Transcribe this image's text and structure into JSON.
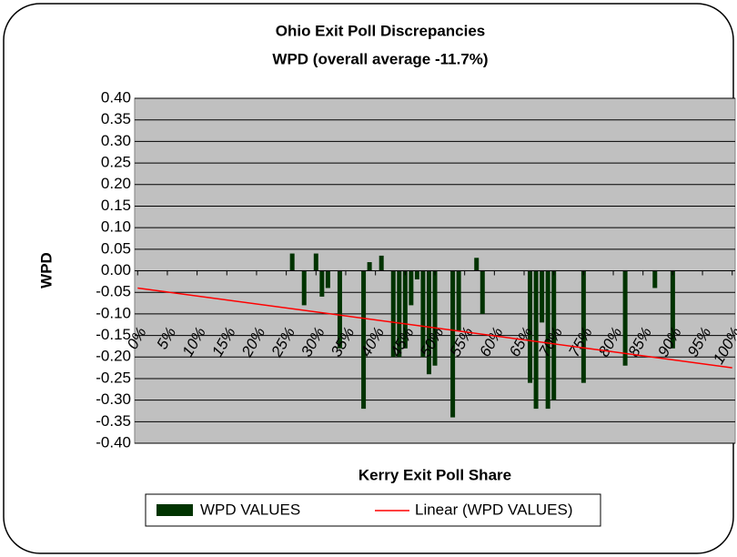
{
  "chart_data": {
    "type": "bar",
    "title": "Ohio Exit Poll Discrepancies",
    "subtitle": "WPD (overall average -11.7%)",
    "y_label": "WPD",
    "x_label": "Kerry Exit Poll Share",
    "x": [
      26,
      28,
      30,
      31,
      32,
      34,
      38,
      39,
      41,
      43,
      44,
      45,
      46,
      47,
      48,
      49,
      50,
      53,
      54,
      57,
      58,
      66,
      67,
      68,
      69,
      70,
      75,
      82,
      87,
      90
    ],
    "series": [
      {
        "name": "WPD VALUES",
        "color": "#003300",
        "values": [
          0.04,
          -0.08,
          0.04,
          -0.06,
          -0.04,
          -0.18,
          -0.32,
          0.02,
          0.035,
          -0.2,
          -0.2,
          -0.18,
          -0.08,
          -0.02,
          -0.2,
          -0.24,
          -0.22,
          -0.34,
          -0.14,
          0.03,
          -0.1,
          -0.26,
          -0.32,
          -0.12,
          -0.32,
          -0.3,
          -0.26,
          -0.22,
          -0.04,
          -0.18
        ]
      }
    ],
    "trendline": {
      "name": "Linear (WPD VALUES)",
      "color": "#ff0000",
      "x": [
        0,
        100
      ],
      "values": [
        -0.04,
        -0.225
      ]
    },
    "xlim": [
      -0.5,
      100.5
    ],
    "xticks": [
      {
        "value": 0,
        "label": "0%"
      },
      {
        "value": 5,
        "label": "5%"
      },
      {
        "value": 10,
        "label": "10%"
      },
      {
        "value": 15,
        "label": "15%"
      },
      {
        "value": 20,
        "label": "20%"
      },
      {
        "value": 25,
        "label": "25%"
      },
      {
        "value": 30,
        "label": "30%"
      },
      {
        "value": 35,
        "label": "35%"
      },
      {
        "value": 40,
        "label": "40%"
      },
      {
        "value": 45,
        "label": "45%"
      },
      {
        "value": 50,
        "label": "50%"
      },
      {
        "value": 55,
        "label": "55%"
      },
      {
        "value": 60,
        "label": "60%"
      },
      {
        "value": 65,
        "label": "65%"
      },
      {
        "value": 70,
        "label": "70%"
      },
      {
        "value": 75,
        "label": "75%"
      },
      {
        "value": 80,
        "label": "80%"
      },
      {
        "value": 85,
        "label": "85%"
      },
      {
        "value": 90,
        "label": "90%"
      },
      {
        "value": 95,
        "label": "95%"
      },
      {
        "value": 100,
        "label": "100%"
      }
    ],
    "ylim": [
      -0.4,
      0.4
    ],
    "yticks": [
      {
        "value": 0.4,
        "label": "0.40"
      },
      {
        "value": 0.35,
        "label": "0.35"
      },
      {
        "value": 0.3,
        "label": "0.30"
      },
      {
        "value": 0.25,
        "label": "0.25"
      },
      {
        "value": 0.2,
        "label": "0.20"
      },
      {
        "value": 0.15,
        "label": "0.15"
      },
      {
        "value": 0.1,
        "label": "0.10"
      },
      {
        "value": 0.05,
        "label": "0.05"
      },
      {
        "value": 0,
        "label": "0.00"
      },
      {
        "value": -0.05,
        "label": "-0.05"
      },
      {
        "value": -0.1,
        "label": "-0.10"
      },
      {
        "value": -0.15,
        "label": "-0.15"
      },
      {
        "value": -0.2,
        "label": "-0.20"
      },
      {
        "value": -0.25,
        "label": "-0.25"
      },
      {
        "value": -0.3,
        "label": "-0.30"
      },
      {
        "value": -0.35,
        "label": "-0.35"
      },
      {
        "value": -0.4,
        "label": "-0.40"
      }
    ],
    "grid": true,
    "legend": "bottom"
  }
}
